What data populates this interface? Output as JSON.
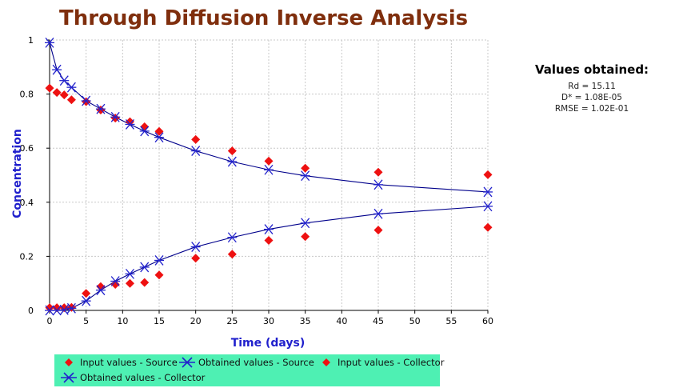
{
  "chart_data": {
    "type": "scatter",
    "title": "Through Diffusion Inverse Analysis",
    "xlabel": "Time (days)",
    "ylabel": "Concentration",
    "xlim": [
      0,
      60
    ],
    "ylim": [
      0,
      1
    ],
    "xticks": [
      0,
      5,
      10,
      15,
      20,
      25,
      30,
      35,
      40,
      45,
      50,
      55,
      60
    ],
    "yticks": [
      0,
      0.2,
      0.4,
      0.6,
      0.8,
      1
    ],
    "grid": true,
    "legend_position": "bottom",
    "series": [
      {
        "name": "Input values - Source",
        "marker": "diamond",
        "color": "#ee1111",
        "x": [
          0,
          1,
          2,
          3,
          5,
          7,
          9,
          11,
          13,
          15,
          20,
          25,
          30,
          35,
          45,
          60
        ],
        "y": [
          0.822,
          0.806,
          0.797,
          0.779,
          0.772,
          0.741,
          0.711,
          0.698,
          0.679,
          0.662,
          0.632,
          0.59,
          0.552,
          0.526,
          0.511,
          0.502
        ]
      },
      {
        "name": "Obtained values - Source",
        "marker": "x-star",
        "line": true,
        "color": "#2222cc",
        "x": [
          0,
          1,
          2,
          3,
          5,
          7,
          9,
          11,
          13,
          15,
          20,
          25,
          30,
          35,
          45,
          60
        ],
        "y": [
          0.99,
          0.89,
          0.85,
          0.825,
          0.775,
          0.745,
          0.715,
          0.688,
          0.663,
          0.64,
          0.59,
          0.55,
          0.52,
          0.498,
          0.465,
          0.438
        ]
      },
      {
        "name": "Input values - Collector",
        "marker": "diamond",
        "color": "#ee1111",
        "x": [
          0,
          1,
          2,
          3,
          5,
          7,
          9,
          11,
          13,
          15,
          20,
          25,
          30,
          35,
          45,
          60
        ],
        "y": [
          0.01,
          0.01,
          0.01,
          0.011,
          0.063,
          0.088,
          0.096,
          0.1,
          0.103,
          0.131,
          0.193,
          0.208,
          0.259,
          0.273,
          0.297,
          0.307
        ]
      },
      {
        "name": "Obtained values - Collector",
        "marker": "x-star",
        "line": true,
        "color": "#2222cc",
        "x": [
          0,
          1,
          2,
          3,
          5,
          7,
          9,
          11,
          13,
          15,
          20,
          25,
          30,
          35,
          45,
          60
        ],
        "y": [
          0.0,
          0.0,
          0.002,
          0.008,
          0.035,
          0.075,
          0.108,
          0.135,
          0.16,
          0.185,
          0.235,
          0.27,
          0.3,
          0.323,
          0.357,
          0.385
        ]
      }
    ]
  },
  "results": {
    "heading": "Values obtained:",
    "rd": "Rd = 15.11",
    "dstar": "D* = 1.08E-05",
    "rmse": "RMSE = 1.02E-01"
  },
  "colors": {
    "title": "#7f2e0d",
    "axis_label": "#1f1fcc",
    "legend_bg": "#4ef0b3"
  }
}
